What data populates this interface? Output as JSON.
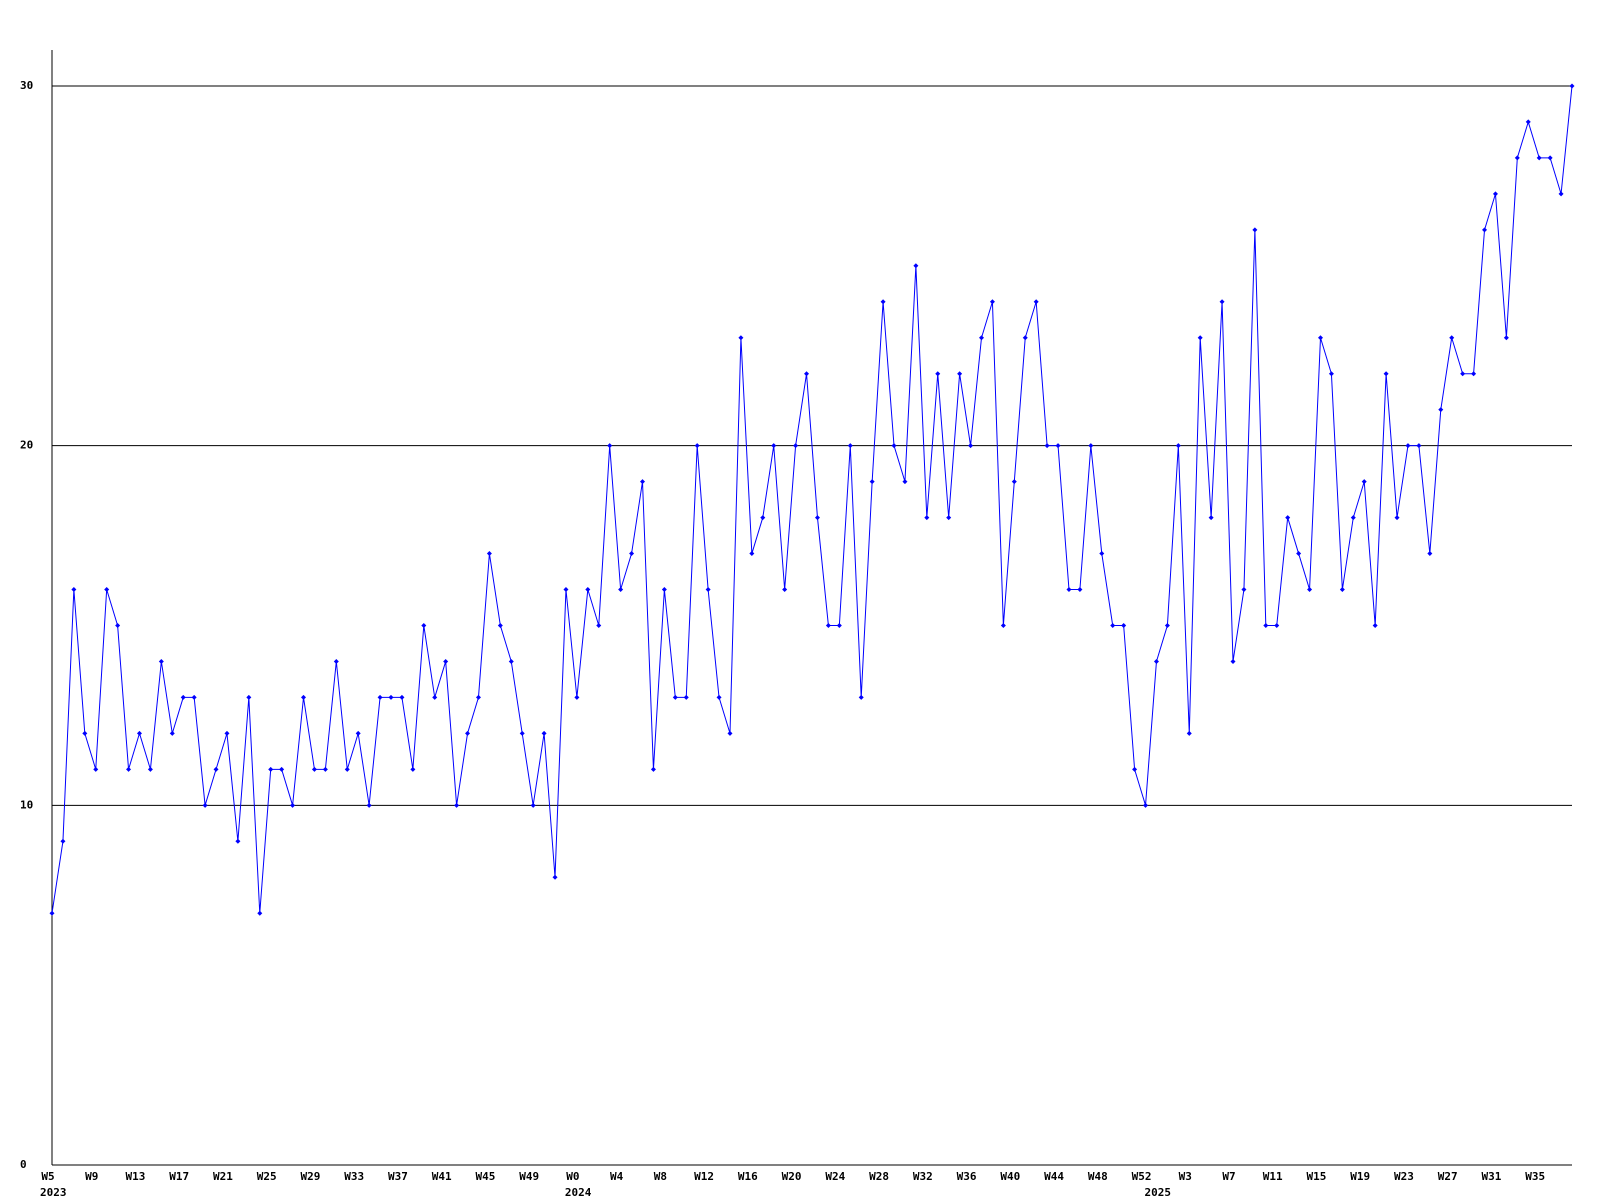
{
  "chart_data": {
    "type": "line",
    "color": "#0000ff",
    "grid": true,
    "ylim": [
      0,
      31
    ],
    "yticks": [
      0,
      10,
      20,
      30
    ],
    "categories": [
      "W5",
      null,
      null,
      null,
      "W9",
      null,
      null,
      null,
      "W13",
      null,
      null,
      null,
      "W17",
      null,
      null,
      null,
      "W21",
      null,
      null,
      null,
      "W25",
      null,
      null,
      null,
      "W29",
      null,
      null,
      null,
      "W33",
      null,
      null,
      null,
      "W37",
      null,
      null,
      null,
      "W41",
      null,
      null,
      null,
      "W45",
      null,
      null,
      null,
      "W49",
      null,
      null,
      null,
      "W0",
      null,
      null,
      null,
      "W4",
      null,
      null,
      null,
      "W8",
      null,
      null,
      null,
      "W12",
      null,
      null,
      null,
      "W16",
      null,
      null,
      null,
      "W20",
      null,
      null,
      null,
      "W24",
      null,
      null,
      null,
      "W28",
      null,
      null,
      null,
      "W32",
      null,
      null,
      null,
      "W36",
      null,
      null,
      null,
      "W40",
      null,
      null,
      null,
      "W44",
      null,
      null,
      null,
      "W48",
      null,
      null,
      null,
      "W52",
      null,
      null,
      null,
      "W3",
      null,
      null,
      null,
      "W7",
      null,
      null,
      null,
      "W11",
      null,
      null,
      null,
      "W15",
      null,
      null,
      null,
      "W19",
      null,
      null,
      null,
      "W23",
      null,
      null,
      null,
      "W27",
      null,
      null,
      null,
      "W31",
      null,
      null,
      null,
      "W35",
      null,
      null,
      null
    ],
    "category_years": [
      "2023",
      null,
      null,
      null,
      null,
      null,
      null,
      null,
      null,
      null,
      null,
      null,
      null,
      null,
      null,
      null,
      null,
      null,
      null,
      null,
      null,
      null,
      null,
      null,
      null,
      null,
      null,
      null,
      null,
      null,
      null,
      null,
      null,
      null,
      null,
      null,
      null,
      null,
      null,
      null,
      null,
      null,
      null,
      null,
      null,
      null,
      null,
      null,
      "2024",
      null,
      null,
      null,
      null,
      null,
      null,
      null,
      null,
      null,
      null,
      null,
      null,
      null,
      null,
      null,
      null,
      null,
      null,
      null,
      null,
      null,
      null,
      null,
      null,
      null,
      null,
      null,
      null,
      null,
      null,
      null,
      null,
      null,
      null,
      null,
      null,
      null,
      null,
      null,
      null,
      null,
      null,
      null,
      null,
      null,
      null,
      null,
      null,
      null,
      null,
      null,
      null,
      "2025",
      null,
      null,
      null,
      null,
      null,
      null,
      null,
      null,
      null,
      null,
      null,
      null,
      null,
      null,
      null,
      null,
      null,
      null,
      null,
      null,
      null,
      null,
      null,
      null,
      null,
      null,
      null,
      null,
      null,
      null,
      null,
      null,
      null,
      null,
      null,
      null,
      null
    ],
    "values": [
      7,
      9,
      16,
      12,
      11,
      16,
      15,
      11,
      12,
      11,
      14,
      12,
      13,
      13,
      10,
      11,
      12,
      9,
      13,
      7,
      11,
      11,
      10,
      13,
      11,
      11,
      14,
      11,
      12,
      10,
      13,
      13,
      13,
      11,
      15,
      13,
      14,
      10,
      12,
      13,
      17,
      15,
      14,
      12,
      10,
      12,
      8,
      16,
      13,
      16,
      15,
      20,
      16,
      17,
      19,
      11,
      16,
      13,
      13,
      20,
      16,
      13,
      12,
      23,
      17,
      18,
      20,
      16,
      20,
      22,
      18,
      15,
      15,
      20,
      13,
      19,
      24,
      20,
      19,
      25,
      18,
      22,
      18,
      22,
      20,
      23,
      24,
      15,
      19,
      23,
      24,
      20,
      20,
      16,
      16,
      20,
      17,
      15,
      15,
      11,
      10,
      14,
      15,
      20,
      12,
      23,
      18,
      24,
      14,
      16,
      26,
      15,
      15,
      18,
      17,
      16,
      23,
      22,
      16,
      18,
      19,
      15,
      22,
      18,
      20,
      20,
      17,
      21,
      23,
      22,
      22,
      26,
      27,
      23,
      28,
      29,
      28,
      28,
      27,
      30
    ]
  }
}
